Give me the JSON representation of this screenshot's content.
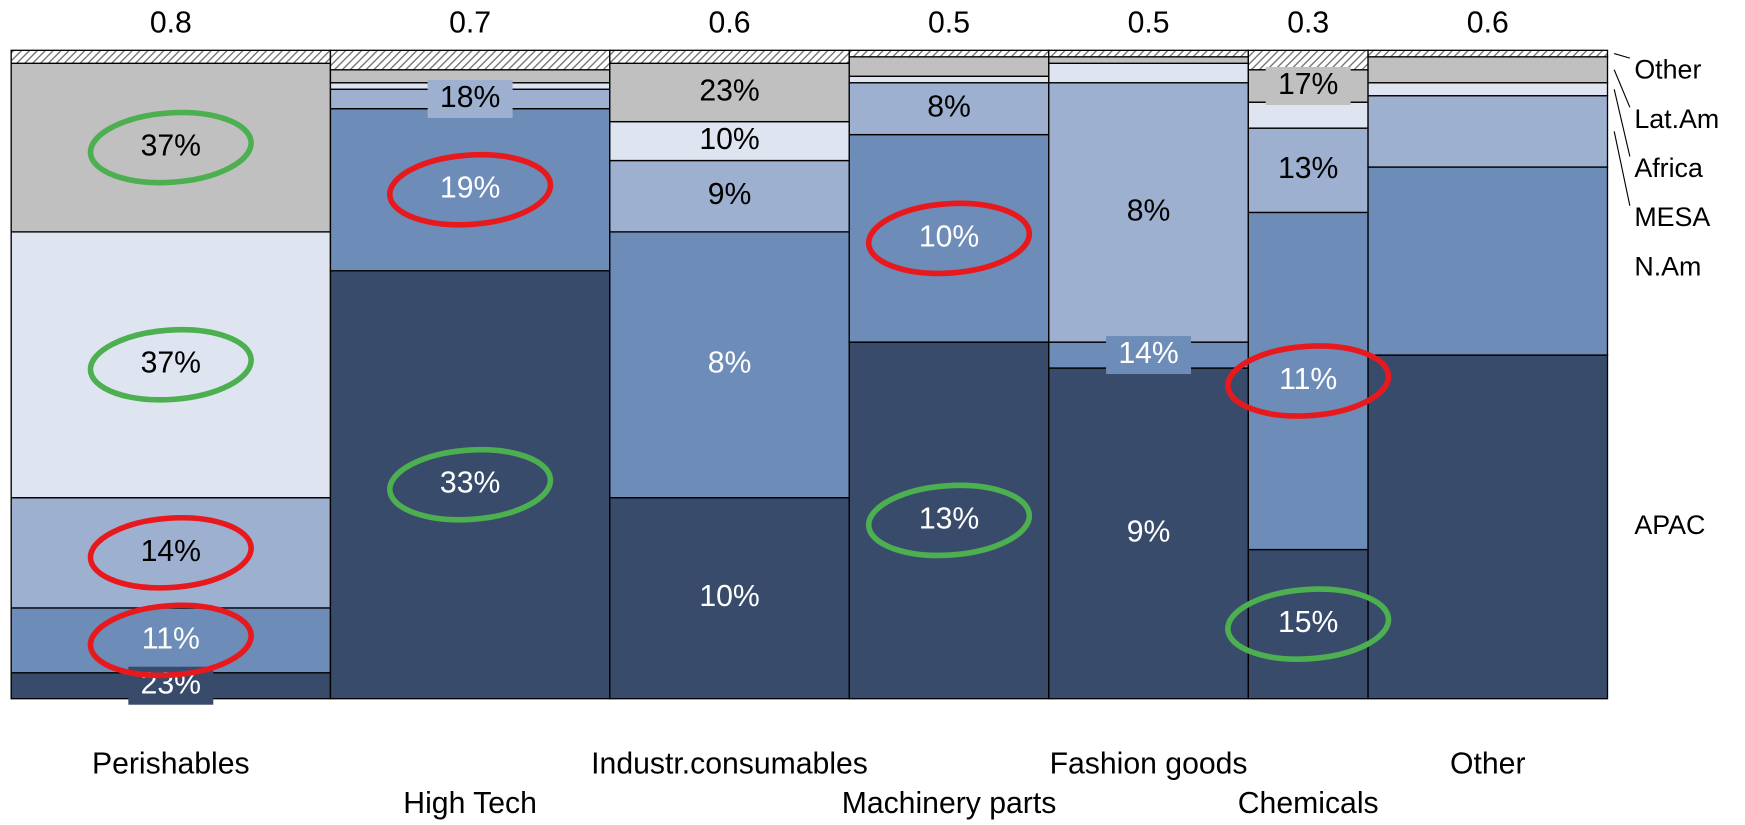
{
  "chart_data": {
    "type": "marimekko",
    "categories": [
      "Perishables",
      "High Tech",
      "Industr.consumables",
      "Machinery parts",
      "Fashion goods",
      "Chemicals",
      "Other"
    ],
    "widths": [
      0.8,
      0.7,
      0.6,
      0.5,
      0.5,
      0.3,
      0.6
    ],
    "ylim": [
      0,
      100
    ],
    "series": [
      {
        "name": "APAC",
        "color": "#394b6b",
        "text_color": "#ffffff",
        "values": [
          4,
          66,
          31,
          55,
          51,
          23,
          53
        ],
        "labels": [
          "23%",
          "33%",
          "10%",
          "13%",
          "9%",
          "15%",
          null
        ],
        "circles": [
          "none",
          "#4caf50",
          "none",
          "#4caf50",
          "none",
          "#4caf50",
          "none"
        ]
      },
      {
        "name": "N.Am",
        "color": "#6d8cb8",
        "text_color": "#ffffff",
        "values": [
          10,
          25,
          41,
          32,
          4,
          52,
          29
        ],
        "labels": [
          "11%",
          "19%",
          "8%",
          "10%",
          "14%",
          "11%",
          null
        ],
        "circles": [
          "#e8191c",
          "#e8191c",
          "none",
          "#e8191c",
          "none",
          "#e8191c",
          "none"
        ]
      },
      {
        "name": "MESA",
        "color": "#9eb0d0",
        "text_color": "#000000",
        "values": [
          17,
          3,
          11,
          8,
          40,
          13,
          11
        ],
        "labels": [
          "14%",
          "18%",
          "9%",
          "8%",
          "8%",
          "13%",
          null
        ],
        "circles": [
          "#e8191c",
          "none",
          "none",
          "none",
          "none",
          "none",
          "none"
        ]
      },
      {
        "name": "Africa",
        "color": "#dfe5f0",
        "text_color": "#000000",
        "values": [
          41,
          1,
          6,
          1,
          3,
          4,
          2
        ],
        "labels": [
          "37%",
          null,
          "10%",
          null,
          null,
          null,
          null
        ],
        "circles": [
          "#4caf50",
          "none",
          "none",
          "none",
          "none",
          "none",
          "none"
        ]
      },
      {
        "name": "Lat.Am",
        "color": "#c0c0c0",
        "text_color": "#000000",
        "values": [
          26,
          2,
          9,
          3,
          1,
          5,
          4
        ],
        "labels": [
          "37%",
          null,
          "23%",
          null,
          null,
          "17%",
          null
        ],
        "circles": [
          "#4caf50",
          "none",
          "none",
          "none",
          "none",
          "none",
          "none"
        ]
      },
      {
        "name": "Other",
        "color": "hatch",
        "text_color": "#000000",
        "values": [
          2,
          3,
          2,
          1,
          1,
          3,
          1
        ],
        "labels": [
          null,
          null,
          null,
          null,
          null,
          null,
          null
        ],
        "circles": [
          "none",
          "none",
          "none",
          "none",
          "none",
          "none",
          "none"
        ]
      }
    ]
  }
}
